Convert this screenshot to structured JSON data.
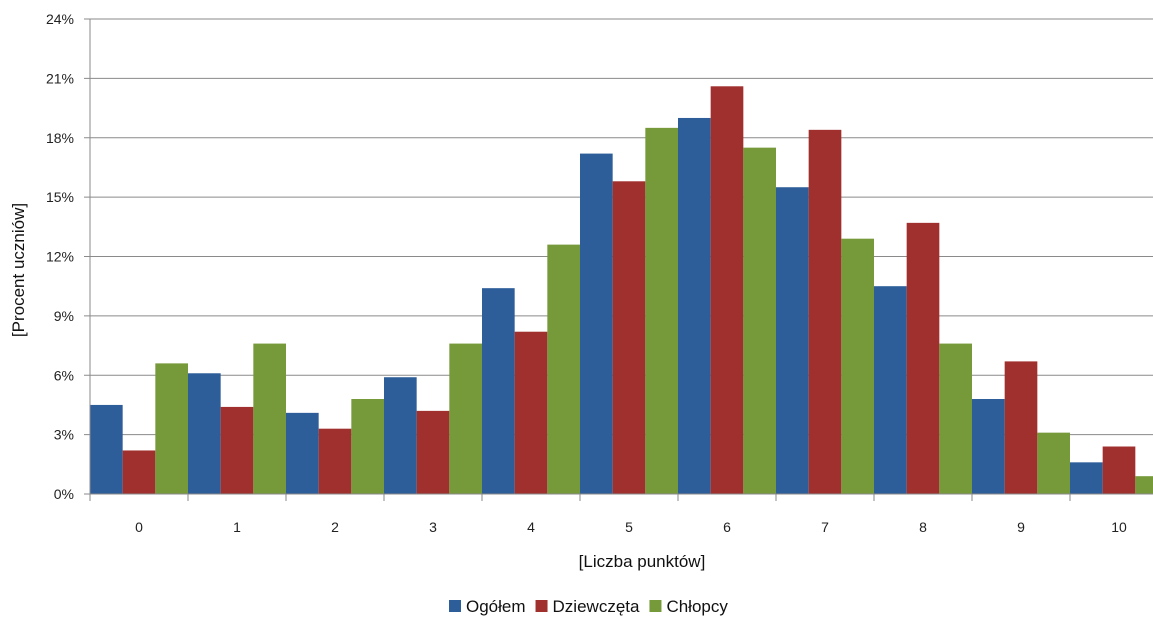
{
  "chart_data": {
    "type": "bar",
    "categories": [
      "0",
      "1",
      "2",
      "3",
      "4",
      "5",
      "6",
      "7",
      "8",
      "9",
      "10"
    ],
    "series": [
      {
        "name": "Ogółem",
        "color": "#2E5E99",
        "values": [
          4.5,
          6.1,
          4.1,
          5.9,
          10.4,
          17.2,
          19.0,
          15.5,
          10.5,
          4.8,
          1.6
        ]
      },
      {
        "name": "Dziewczęta",
        "color": "#A0302E",
        "values": [
          2.2,
          4.4,
          3.3,
          4.2,
          8.2,
          15.8,
          20.6,
          18.4,
          13.7,
          6.7,
          2.4
        ]
      },
      {
        "name": "Chłopcy",
        "color": "#76993A",
        "values": [
          6.6,
          7.6,
          4.8,
          7.6,
          12.6,
          18.5,
          17.5,
          12.9,
          7.6,
          3.1,
          0.9
        ]
      }
    ],
    "xlabel": "[Liczba punktów]",
    "ylabel": "[Procent uczniów]",
    "ylim": [
      0,
      24
    ],
    "yticks": [
      "0%",
      "3%",
      "6%",
      "9%",
      "12%",
      "15%",
      "18%",
      "21%",
      "24%"
    ],
    "grid": true,
    "legend_position": "bottom"
  }
}
